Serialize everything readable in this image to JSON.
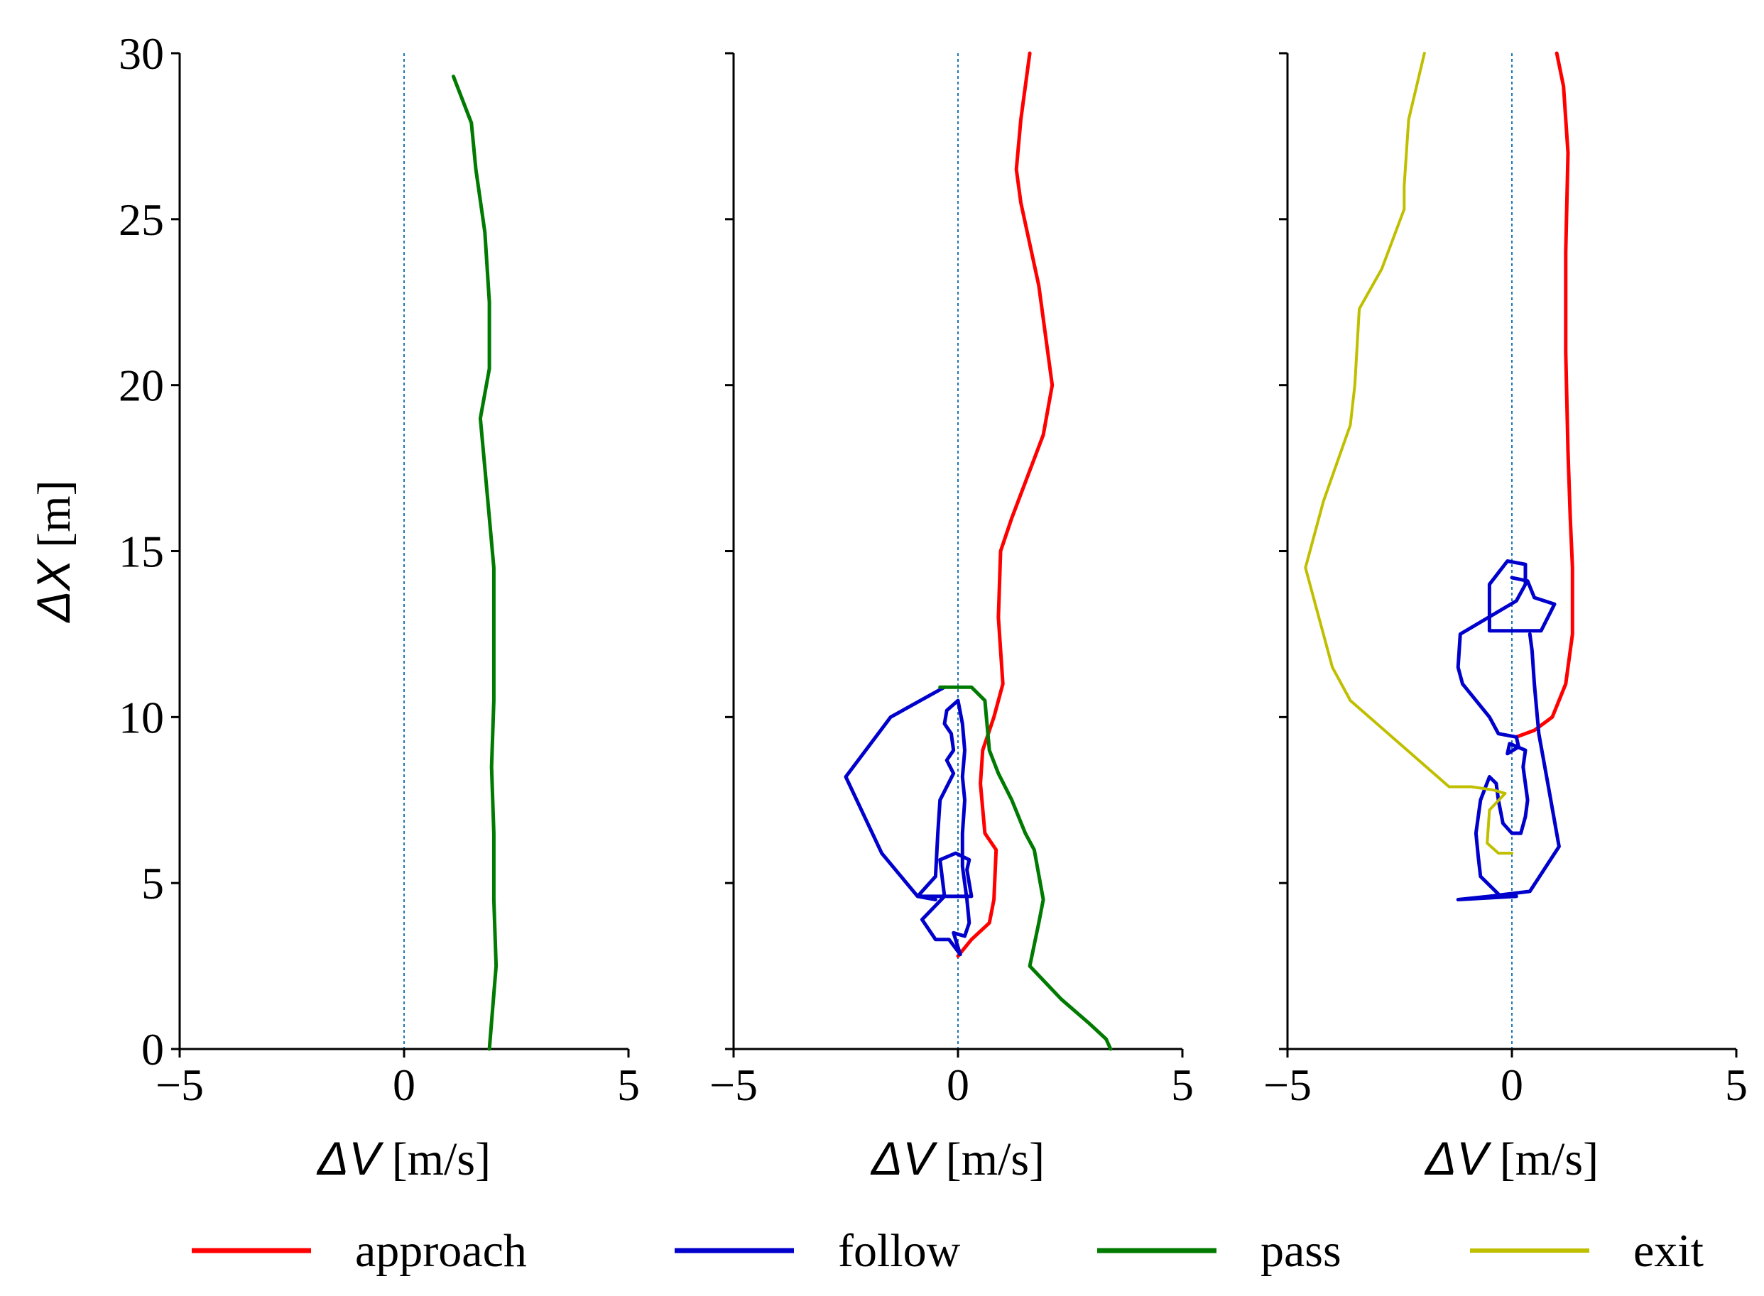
{
  "chart_data": {
    "type": "line",
    "panels": [
      {
        "xlabel": "ΔV [m/s]",
        "ylabel": "ΔX [m]",
        "xlim": [
          -5,
          5
        ],
        "ylim": [
          0,
          30
        ],
        "xticks": [
          -5,
          0,
          5
        ],
        "yticks": [
          0,
          5,
          10,
          15,
          20,
          25,
          30
        ],
        "reference_line": {
          "x": 0,
          "style": "dotted"
        },
        "series": [
          {
            "name": "pass",
            "points": [
              [
                1.1,
                29.3
              ],
              [
                1.5,
                27.9
              ],
              [
                1.6,
                26.5
              ],
              [
                1.8,
                24.6
              ],
              [
                1.9,
                22.5
              ],
              [
                1.9,
                20.5
              ],
              [
                1.7,
                19
              ],
              [
                1.8,
                17.5
              ],
              [
                1.9,
                16
              ],
              [
                2.0,
                14.5
              ],
              [
                2.0,
                12.5
              ],
              [
                2.0,
                10.5
              ],
              [
                1.95,
                8.5
              ],
              [
                2.0,
                6.5
              ],
              [
                2.0,
                4.5
              ],
              [
                2.05,
                2.5
              ],
              [
                1.9,
                0
              ]
            ]
          }
        ]
      },
      {
        "xlabel": "ΔV [m/s]",
        "xlim": [
          -5,
          5
        ],
        "ylim": [
          0,
          30
        ],
        "xticks": [
          -5,
          0,
          5
        ],
        "reference_line": {
          "x": 0,
          "style": "dotted"
        },
        "series": [
          {
            "name": "approach",
            "points": [
              [
                1.6,
                30
              ],
              [
                1.4,
                28
              ],
              [
                1.3,
                26.5
              ],
              [
                1.4,
                25.5
              ],
              [
                1.8,
                23
              ],
              [
                2.1,
                20
              ],
              [
                1.9,
                18.5
              ],
              [
                1.2,
                16
              ],
              [
                0.95,
                15
              ],
              [
                0.9,
                13
              ],
              [
                1.0,
                11
              ],
              [
                0.8,
                10
              ],
              [
                0.55,
                9
              ],
              [
                0.5,
                8
              ],
              [
                0.6,
                6.5
              ],
              [
                0.85,
                6
              ],
              [
                0.8,
                4.5
              ],
              [
                0.7,
                3.8
              ],
              [
                0.3,
                3.3
              ],
              [
                0,
                2.8
              ]
            ]
          },
          {
            "name": "follow",
            "points": [
              [
                -0.3,
                10.9
              ],
              [
                -1.5,
                10
              ],
              [
                -2.5,
                8.2
              ],
              [
                -1.7,
                5.9
              ],
              [
                -0.9,
                4.6
              ],
              [
                0.3,
                4.6
              ],
              [
                0.2,
                5.4
              ],
              [
                0.25,
                5.7
              ],
              [
                -0.05,
                5.9
              ],
              [
                -0.4,
                5.7
              ],
              [
                -0.3,
                4.6
              ],
              [
                -0.8,
                3.9
              ],
              [
                -0.5,
                3.3
              ],
              [
                -0.2,
                3.3
              ],
              [
                0.05,
                2.85
              ],
              [
                -0.1,
                3.5
              ],
              [
                0.15,
                3.4
              ],
              [
                0.25,
                3.8
              ],
              [
                0.2,
                4.5
              ],
              [
                0.1,
                5.5
              ],
              [
                0.1,
                6.5
              ],
              [
                0.15,
                7.5
              ],
              [
                0.1,
                8.2
              ],
              [
                0.15,
                9.0
              ],
              [
                0.1,
                9.8
              ],
              [
                0.0,
                10.5
              ],
              [
                -0.25,
                10.2
              ],
              [
                -0.3,
                9.8
              ],
              [
                -0.15,
                9.5
              ],
              [
                -0.1,
                9.0
              ],
              [
                -0.25,
                8.7
              ],
              [
                -0.1,
                8.3
              ],
              [
                -0.4,
                7.5
              ],
              [
                -0.45,
                6.5
              ],
              [
                -0.5,
                5.2
              ],
              [
                -0.9,
                4.6
              ],
              [
                -0.5,
                4.5
              ]
            ]
          },
          {
            "name": "pass",
            "points": [
              [
                -0.4,
                10.9
              ],
              [
                0.3,
                10.9
              ],
              [
                0.6,
                10.5
              ],
              [
                0.7,
                9.0
              ],
              [
                0.9,
                8.3
              ],
              [
                1.2,
                7.5
              ],
              [
                1.5,
                6.5
              ],
              [
                1.7,
                6.0
              ],
              [
                1.9,
                4.5
              ],
              [
                1.8,
                3.8
              ],
              [
                1.6,
                2.5
              ],
              [
                2.3,
                1.5
              ],
              [
                2.9,
                0.8
              ],
              [
                3.3,
                0.3
              ],
              [
                3.4,
                0
              ]
            ]
          }
        ]
      },
      {
        "xlabel": "ΔV [m/s]",
        "xlim": [
          -5,
          5
        ],
        "ylim": [
          0,
          30
        ],
        "xticks": [
          -5,
          0,
          5
        ],
        "reference_line": {
          "x": 0,
          "style": "dotted"
        },
        "series": [
          {
            "name": "approach",
            "points": [
              [
                1.0,
                30
              ],
              [
                1.15,
                29
              ],
              [
                1.25,
                27
              ],
              [
                1.2,
                24
              ],
              [
                1.2,
                21
              ],
              [
                1.25,
                18
              ],
              [
                1.3,
                16
              ],
              [
                1.35,
                14.5
              ],
              [
                1.35,
                12.5
              ],
              [
                1.2,
                11
              ],
              [
                0.9,
                10
              ],
              [
                0.5,
                9.6
              ],
              [
                0.1,
                9.4
              ]
            ]
          },
          {
            "name": "follow",
            "points": [
              [
                0.0,
                14.2
              ],
              [
                0.35,
                14.1
              ],
              [
                0.5,
                13.6
              ],
              [
                0.95,
                13.4
              ],
              [
                0.65,
                12.6
              ],
              [
                -0.5,
                12.6
              ],
              [
                -0.5,
                14.0
              ],
              [
                -0.1,
                14.7
              ],
              [
                0.3,
                14.6
              ],
              [
                0.3,
                14.0
              ],
              [
                0.1,
                13.5
              ],
              [
                -1.15,
                12.5
              ],
              [
                -1.2,
                11.5
              ],
              [
                -1.1,
                11.0
              ],
              [
                -0.5,
                10.0
              ],
              [
                -0.3,
                9.5
              ],
              [
                0.1,
                9.4
              ],
              [
                0.15,
                9.1
              ],
              [
                -0.1,
                8.9
              ],
              [
                -0.05,
                9.2
              ],
              [
                0.3,
                9.0
              ],
              [
                0.25,
                8.5
              ],
              [
                0.35,
                7.5
              ],
              [
                0.3,
                7.0
              ],
              [
                0.2,
                6.5
              ],
              [
                0.0,
                6.5
              ],
              [
                -0.2,
                6.8
              ],
              [
                -0.3,
                7.5
              ],
              [
                -0.35,
                8.0
              ],
              [
                -0.5,
                8.2
              ],
              [
                -0.7,
                7.5
              ],
              [
                -0.8,
                6.5
              ],
              [
                -0.75,
                5.8
              ],
              [
                -0.7,
                5.2
              ],
              [
                -0.25,
                4.6
              ],
              [
                0.1,
                4.6
              ],
              [
                -1.2,
                4.5
              ],
              [
                -0.5,
                4.6
              ],
              [
                0.4,
                4.75
              ],
              [
                1.05,
                6.1
              ],
              [
                0.8,
                8.0
              ],
              [
                0.6,
                9.5
              ],
              [
                0.5,
                11.0
              ],
              [
                0.45,
                12.0
              ],
              [
                0.4,
                12.5
              ]
            ]
          },
          {
            "name": "exit",
            "points": [
              [
                -1.95,
                30
              ],
              [
                -2.3,
                28
              ],
              [
                -2.4,
                26
              ],
              [
                -2.4,
                25.3
              ],
              [
                -2.9,
                23.5
              ],
              [
                -3.4,
                22.3
              ],
              [
                -3.5,
                20
              ],
              [
                -3.6,
                18.8
              ],
              [
                -4.2,
                16.5
              ],
              [
                -4.6,
                14.5
              ],
              [
                -4.3,
                13
              ],
              [
                -4.0,
                11.5
              ],
              [
                -3.6,
                10.5
              ],
              [
                -2.5,
                9.2
              ],
              [
                -1.4,
                7.9
              ],
              [
                -0.9,
                7.9
              ],
              [
                -0.4,
                7.8
              ],
              [
                -0.15,
                7.7
              ],
              [
                -0.5,
                7.2
              ],
              [
                -0.55,
                6.2
              ],
              [
                -0.3,
                5.9
              ],
              [
                0,
                5.9
              ]
            ]
          }
        ]
      }
    ],
    "legend": [
      {
        "name": "approach",
        "color": "#ff0000"
      },
      {
        "name": "follow",
        "color": "#0000cc"
      },
      {
        "name": "pass",
        "color": "#007a00"
      },
      {
        "name": "exit",
        "color": "#bfbf00"
      }
    ],
    "legend_position": "bottom"
  }
}
